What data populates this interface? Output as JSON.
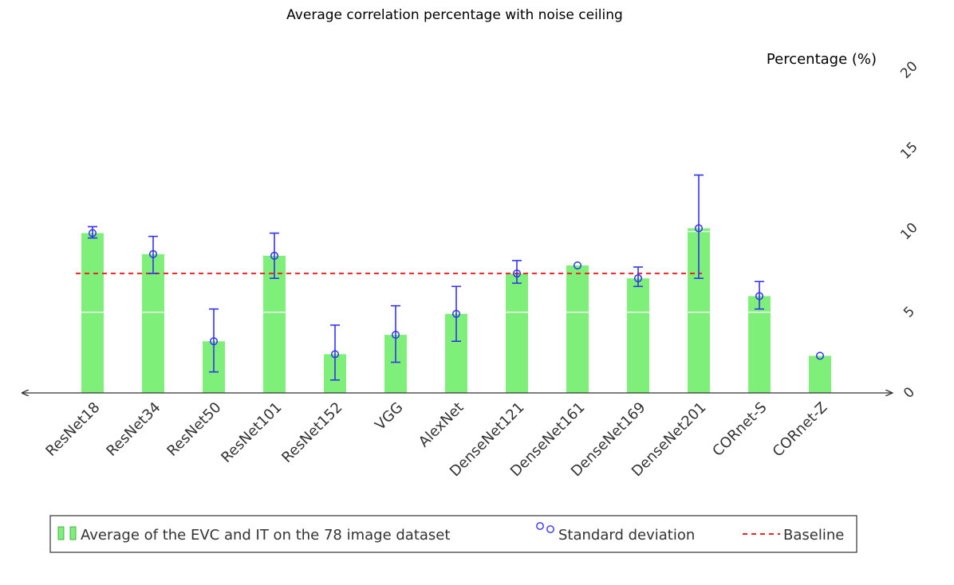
{
  "chart_data": {
    "type": "bar",
    "title": "Average correlation percentage with noise ceiling",
    "ylabel": "Percentage (%)",
    "xlabel": "",
    "ylim": [
      0,
      20
    ],
    "yticks": [
      0,
      5,
      10,
      15,
      20
    ],
    "categories": [
      "ResNet18",
      "ResNet34",
      "ResNet50",
      "ResNet101",
      "ResNet152",
      "VGG",
      "AlexNet",
      "DenseNet121",
      "DenseNet161",
      "DenseNet169",
      "DenseNet201",
      "CORnet-S",
      "CORnet-Z"
    ],
    "series": [
      {
        "name": "Average of the EVC and IT on the 78 image dataset",
        "values": [
          9.9,
          8.6,
          3.2,
          8.5,
          2.4,
          3.6,
          4.9,
          7.4,
          7.9,
          7.1,
          10.2,
          6.0,
          2.3
        ],
        "color": "#7ef07a"
      }
    ],
    "error_bars": {
      "name": "Standard deviation",
      "color": "#3333ee",
      "lower": [
        9.6,
        7.4,
        1.3,
        7.1,
        0.8,
        1.9,
        3.2,
        6.8,
        7.9,
        6.6,
        7.1,
        5.2,
        2.3
      ],
      "upper": [
        10.3,
        9.7,
        5.2,
        9.9,
        4.2,
        5.4,
        6.6,
        8.2,
        7.9,
        7.8,
        13.5,
        6.9,
        2.3
      ]
    },
    "baseline": {
      "name": "Baseline",
      "value": 7.4,
      "color": "#ee2222"
    },
    "legend": {
      "position": "bottom",
      "entries": [
        "Average of the EVC and IT on the 78 image dataset",
        "Standard deviation",
        "Baseline"
      ]
    }
  }
}
